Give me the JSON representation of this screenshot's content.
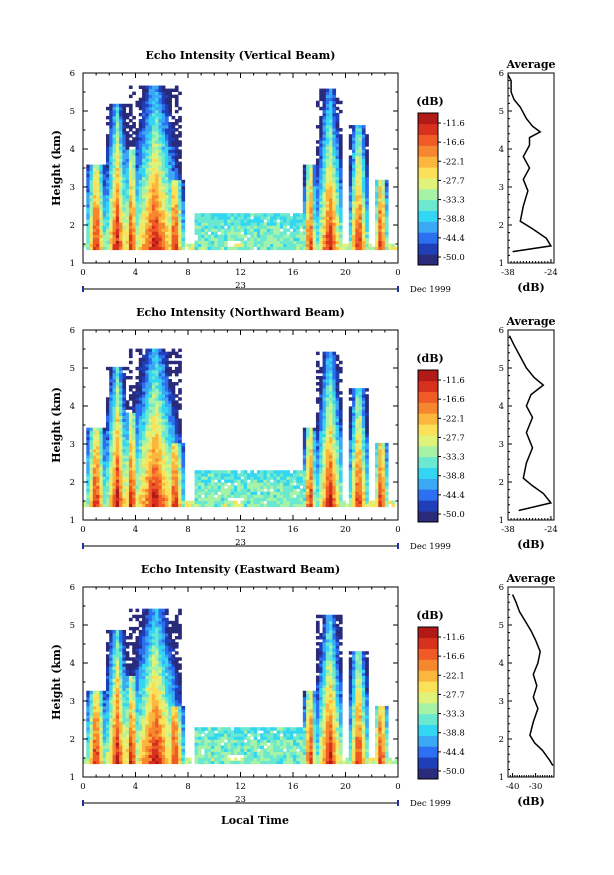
{
  "figure": {
    "x_label": "Local Time",
    "colorbar_unit": "(dB)",
    "colorbar_ticks": [
      "-11.6",
      "-16.6",
      "-22.1",
      "-27.7",
      "-33.3",
      "-38.8",
      "-44.4",
      "-50.0"
    ],
    "colors": [
      "#2a2a7a",
      "#1f3fb8",
      "#2c6ff0",
      "#3aa8f5",
      "#33d6f2",
      "#6ae8d0",
      "#a6f2a6",
      "#dff27a",
      "#fbe05a",
      "#fbb63e",
      "#f7872e",
      "#ef5a26",
      "#d8321e",
      "#b21a18"
    ]
  },
  "chart_data": [
    {
      "type": "heatmap",
      "title": "Echo Intensity (Vertical Beam)",
      "ylabel": "Height (km)",
      "x_ticks": [
        "0",
        "4",
        "8",
        "12",
        "16",
        "20",
        "0"
      ],
      "date_tick": "23",
      "date_label": "Dec 1999",
      "xlim": [
        0,
        24
      ],
      "ylim": [
        1,
        6
      ],
      "y_ticks": [
        "1",
        "2",
        "3",
        "4",
        "5",
        "6"
      ],
      "clim": [
        -50.0,
        -11.6
      ],
      "average": {
        "title": "Average",
        "xlabel": "(dB)",
        "x_ticks": [
          "-38",
          "-24"
        ],
        "x_tick_values": [
          -38,
          -24
        ],
        "xlim": [
          -38,
          -23
        ],
        "y_ticks": [
          "1",
          "2",
          "3",
          "4",
          "5",
          "6"
        ],
        "profile": [
          [
            -36.5,
            1.3
          ],
          [
            -24,
            1.45
          ],
          [
            -25.5,
            1.65
          ],
          [
            -30,
            1.9
          ],
          [
            -34,
            2.1
          ],
          [
            -33,
            2.5
          ],
          [
            -31.5,
            2.9
          ],
          [
            -33,
            3.2
          ],
          [
            -31,
            3.5
          ],
          [
            -33,
            3.8
          ],
          [
            -31,
            4.1
          ],
          [
            -31,
            4.3
          ],
          [
            -27.5,
            4.45
          ],
          [
            -30,
            4.6
          ],
          [
            -32,
            4.8
          ],
          [
            -34,
            5.1
          ],
          [
            -36,
            5.3
          ],
          [
            -37,
            5.5
          ],
          [
            -37,
            5.8
          ],
          [
            -38,
            5.95
          ]
        ]
      }
    },
    {
      "type": "heatmap",
      "title": "Echo Intensity (Northward Beam)",
      "ylabel": "Height (km)",
      "x_ticks": [
        "0",
        "4",
        "8",
        "12",
        "16",
        "20",
        "0"
      ],
      "date_tick": "23",
      "date_label": "Dec 1999",
      "xlim": [
        0,
        24
      ],
      "ylim": [
        1,
        6
      ],
      "y_ticks": [
        "1",
        "2",
        "3",
        "4",
        "5",
        "6"
      ],
      "clim": [
        -50.0,
        -11.6
      ],
      "average": {
        "title": "Average",
        "xlabel": "(dB)",
        "x_ticks": [
          "-38",
          "-24"
        ],
        "x_tick_values": [
          -38,
          -24
        ],
        "xlim": [
          -38,
          -23
        ],
        "y_ticks": [
          "1",
          "2",
          "3",
          "4",
          "5",
          "6"
        ],
        "profile": [
          [
            -34.5,
            1.25
          ],
          [
            -24,
            1.45
          ],
          [
            -26.5,
            1.7
          ],
          [
            -30,
            1.9
          ],
          [
            -33,
            2.1
          ],
          [
            -32,
            2.5
          ],
          [
            -30,
            2.9
          ],
          [
            -32,
            3.3
          ],
          [
            -30,
            3.7
          ],
          [
            -32,
            4.0
          ],
          [
            -30.5,
            4.3
          ],
          [
            -26.5,
            4.55
          ],
          [
            -29.5,
            4.75
          ],
          [
            -32,
            5.0
          ],
          [
            -34,
            5.3
          ],
          [
            -36,
            5.6
          ],
          [
            -37.5,
            5.85
          ]
        ]
      }
    },
    {
      "type": "heatmap",
      "title": "Echo Intensity (Eastward Beam)",
      "ylabel": "Height (km)",
      "x_ticks": [
        "0",
        "4",
        "8",
        "12",
        "16",
        "20",
        "0"
      ],
      "date_tick": "23",
      "date_label": "Dec 1999",
      "xlim": [
        0,
        24
      ],
      "ylim": [
        1,
        6
      ],
      "y_ticks": [
        "1",
        "2",
        "3",
        "4",
        "5",
        "6"
      ],
      "clim": [
        -50.0,
        -11.6
      ],
      "average": {
        "title": "Average",
        "xlabel": "(dB)",
        "x_ticks": [
          "-40",
          "-30"
        ],
        "x_tick_values": [
          -40,
          -30
        ],
        "xlim": [
          -42,
          -22
        ],
        "y_ticks": [
          "1",
          "2",
          "3",
          "4",
          "5",
          "6"
        ],
        "profile": [
          [
            -22.5,
            1.3
          ],
          [
            -24,
            1.45
          ],
          [
            -27,
            1.7
          ],
          [
            -30.5,
            1.9
          ],
          [
            -32.5,
            2.1
          ],
          [
            -31,
            2.45
          ],
          [
            -29,
            2.8
          ],
          [
            -31,
            3.1
          ],
          [
            -29.5,
            3.4
          ],
          [
            -31,
            3.7
          ],
          [
            -29,
            4.0
          ],
          [
            -28,
            4.3
          ],
          [
            -30,
            4.6
          ],
          [
            -32,
            4.85
          ],
          [
            -34.5,
            5.1
          ],
          [
            -37,
            5.35
          ],
          [
            -38.5,
            5.6
          ],
          [
            -40,
            5.8
          ]
        ]
      }
    }
  ]
}
